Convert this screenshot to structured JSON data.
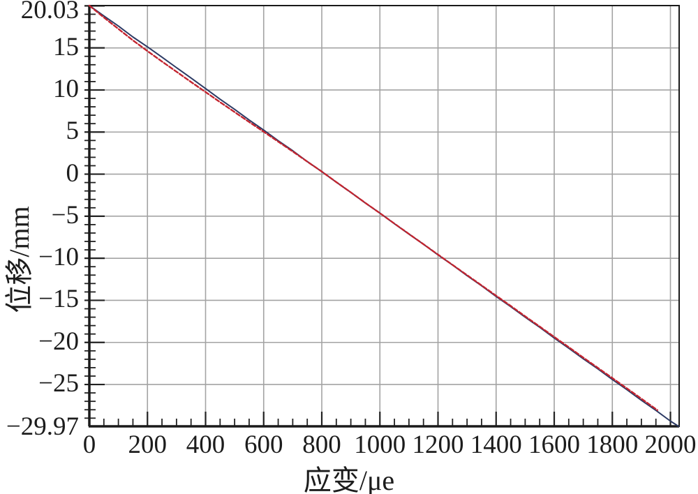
{
  "chart_data": {
    "type": "line",
    "title": "",
    "xlabel": "应变/μe",
    "ylabel": "位移/mm",
    "xlim": [
      0,
      2030
    ],
    "ylim": [
      -29.97,
      20.03
    ],
    "grid": true,
    "legend": "none",
    "x_axis": {
      "major_ticks": [
        0,
        200,
        400,
        600,
        800,
        1000,
        1200,
        1400,
        1600,
        1800,
        2000
      ],
      "major_tick_labels": [
        "0",
        "200",
        "400",
        "600",
        "800",
        "1000",
        "1200",
        "1400",
        "1600",
        "1800",
        "2000"
      ],
      "minor_tick_step": 50,
      "gridlines": [
        200,
        400,
        600,
        800,
        1000,
        1200,
        1400,
        1600,
        1800,
        2000
      ]
    },
    "y_axis": {
      "major_ticks": [
        15,
        10,
        5,
        0,
        -5,
        -10,
        -15,
        -20,
        -25
      ],
      "major_tick_labels": [
        "15",
        "10",
        "5",
        "0",
        "−5",
        "−10",
        "−15",
        "−20",
        "−25"
      ],
      "minor_tick_step": 1,
      "gridlines": [
        15,
        10,
        5,
        0,
        -5,
        -10,
        -15,
        -20,
        -25
      ],
      "top_label": "20.03",
      "bottom_label": "−29.97"
    },
    "style": {
      "grid_color": "#a3a3a3",
      "axis_color": "#1a1a1a",
      "tick_color": "#222222"
    },
    "series": [
      {
        "name": "dark-solid-line",
        "color": "#2c3a64",
        "style": "solid",
        "width": 2,
        "points": [
          [
            0,
            20.03
          ],
          [
            50,
            18.8
          ],
          [
            100,
            17.6
          ],
          [
            150,
            16.3
          ],
          [
            200,
            15.12
          ],
          [
            250,
            13.9
          ],
          [
            300,
            12.65
          ],
          [
            350,
            11.42
          ],
          [
            400,
            10.17
          ],
          [
            450,
            8.9
          ],
          [
            500,
            7.7
          ],
          [
            550,
            6.44
          ],
          [
            600,
            5.24
          ],
          [
            650,
            3.97
          ],
          [
            700,
            2.78
          ],
          [
            750,
            1.5
          ],
          [
            800,
            0.3
          ],
          [
            850,
            -0.96
          ],
          [
            900,
            -2.17
          ],
          [
            950,
            -3.43
          ],
          [
            1000,
            -4.63
          ],
          [
            1050,
            -5.9
          ],
          [
            1100,
            -7.13
          ],
          [
            1150,
            -8.34
          ],
          [
            1200,
            -9.6
          ],
          [
            1250,
            -10.8
          ],
          [
            1300,
            -12.07
          ],
          [
            1350,
            -13.27
          ],
          [
            1400,
            -14.54
          ],
          [
            1450,
            -15.74
          ],
          [
            1500,
            -17.0
          ],
          [
            1550,
            -18.2
          ],
          [
            1600,
            -19.47
          ],
          [
            1650,
            -20.68
          ],
          [
            1700,
            -21.94
          ],
          [
            1750,
            -23.14
          ],
          [
            1800,
            -24.41
          ],
          [
            1850,
            -25.61
          ],
          [
            1900,
            -26.88
          ],
          [
            1950,
            -28.08
          ],
          [
            2000,
            -29.35
          ],
          [
            2028,
            -29.97
          ]
        ]
      },
      {
        "name": "red-dashed-line",
        "color": "#c3242f",
        "style": "dashed",
        "width": 2.4,
        "points": [
          [
            0,
            20.03
          ],
          [
            50,
            18.62
          ],
          [
            100,
            17.26
          ],
          [
            150,
            15.9
          ],
          [
            200,
            14.62
          ],
          [
            250,
            13.38
          ],
          [
            300,
            12.17
          ],
          [
            350,
            10.95
          ],
          [
            400,
            9.76
          ],
          [
            450,
            8.55
          ],
          [
            500,
            7.38
          ],
          [
            550,
            6.2
          ],
          [
            600,
            5.04
          ],
          [
            650,
            3.86
          ],
          [
            700,
            2.69
          ],
          [
            750,
            1.49
          ],
          [
            800,
            0.3
          ],
          [
            850,
            -0.95
          ],
          [
            900,
            -2.17
          ],
          [
            950,
            -3.42
          ],
          [
            1000,
            -4.64
          ],
          [
            1050,
            -5.88
          ],
          [
            1100,
            -7.11
          ],
          [
            1150,
            -8.33
          ],
          [
            1200,
            -9.56
          ],
          [
            1250,
            -10.78
          ],
          [
            1300,
            -12.0
          ],
          [
            1350,
            -13.22
          ],
          [
            1400,
            -14.45
          ],
          [
            1450,
            -15.66
          ],
          [
            1500,
            -16.9
          ],
          [
            1550,
            -18.11
          ],
          [
            1600,
            -19.35
          ],
          [
            1650,
            -20.56
          ],
          [
            1700,
            -21.8
          ],
          [
            1750,
            -23.01
          ],
          [
            1800,
            -24.24
          ],
          [
            1850,
            -25.46
          ],
          [
            1900,
            -26.69
          ],
          [
            1955,
            -28.05
          ]
        ]
      }
    ]
  }
}
